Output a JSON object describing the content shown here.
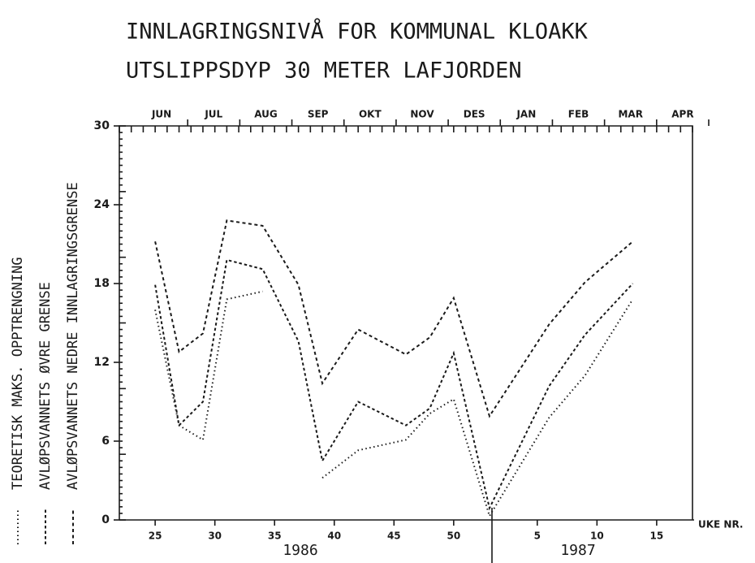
{
  "chart_data": {
    "type": "line",
    "title": [
      "INNLAGRINGSNIVÅ FOR KOMMUNAL KLOAKK",
      "UTSLIPPSDYP 30 METER LAFJORDEN"
    ],
    "x_label": "UKE NR.",
    "years": [
      "1986",
      "1987"
    ],
    "months": [
      "JUN",
      "JUL",
      "AUG",
      "SEP",
      "OKT",
      "NOV",
      "DES",
      "JAN",
      "FEB",
      "MAR",
      "APR"
    ],
    "x": [
      25,
      27,
      29,
      31,
      34,
      37,
      39,
      42,
      46,
      48,
      50,
      53,
      58,
      61,
      65
    ],
    "series": [
      {
        "name": "TEORETISK MAKS. OPPTRENGNING",
        "color": "#1a1a1a",
        "dash": "dotted",
        "values": [
          16.0,
          7.2,
          6.1,
          16.8,
          17.4,
          null,
          3.2,
          5.3,
          6.1,
          8.1,
          9.2,
          0.3,
          7.8,
          11.0,
          16.8
        ]
      },
      {
        "name": "AVLØPSVANNETS ØVRE GRENSE",
        "color": "#1a1a1a",
        "dash": "dashed",
        "values": [
          17.9,
          7.2,
          9.0,
          19.8,
          19.1,
          13.6,
          4.5,
          9.0,
          7.2,
          8.5,
          12.7,
          0.9,
          10.2,
          14.1,
          18.0
        ]
      },
      {
        "name": "AVLØPSVANNETS NEDRE INNLAGRINGSGRENSE",
        "color": "#1a1a1a",
        "dash": "longdash",
        "values": [
          21.2,
          12.8,
          14.2,
          22.8,
          22.4,
          17.9,
          10.4,
          14.5,
          12.6,
          13.9,
          16.9,
          7.9,
          14.9,
          18.1,
          21.2
        ]
      }
    ],
    "xlim": [
      22,
      70
    ],
    "xticks": [
      25,
      30,
      35,
      40,
      45,
      50,
      {
        "value": 57,
        "label": "5"
      },
      {
        "value": 62,
        "label": "10"
      },
      {
        "value": 67,
        "label": "15"
      }
    ],
    "ylim": [
      0,
      30
    ],
    "yticks": [
      0,
      6,
      12,
      18,
      24,
      30
    ],
    "grid": false
  }
}
